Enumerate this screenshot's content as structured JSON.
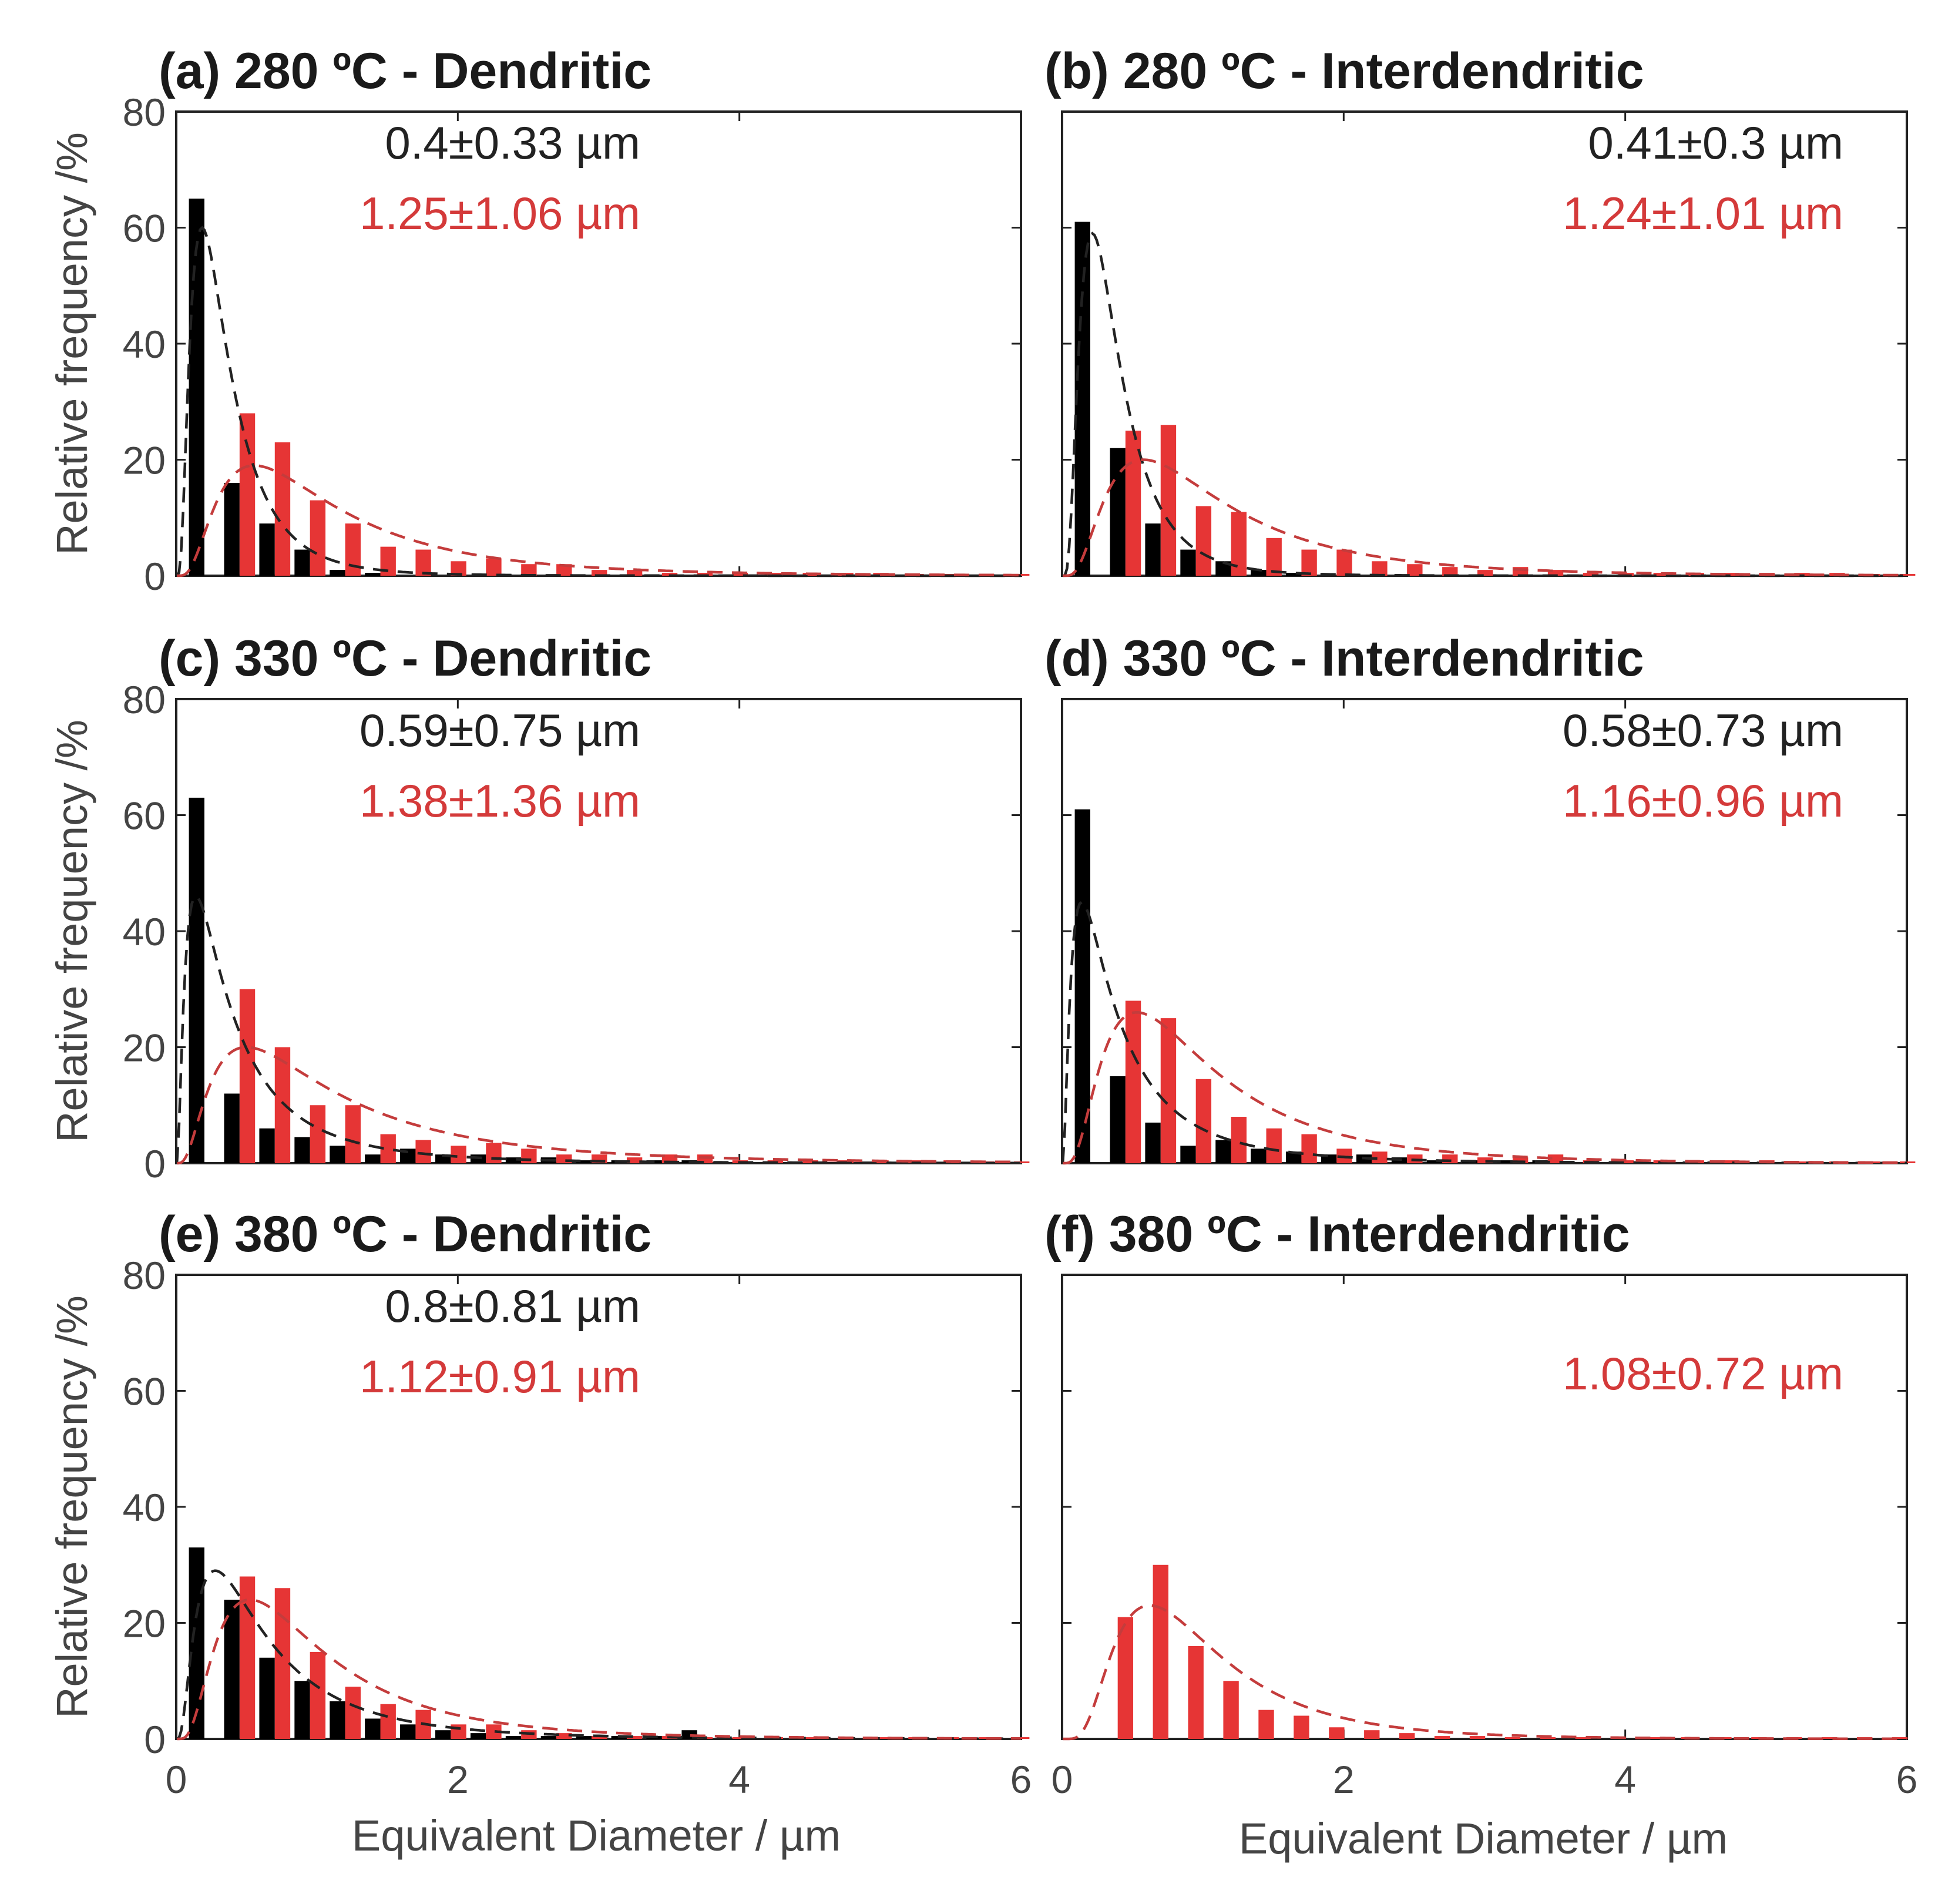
{
  "colors": {
    "series1": "#000000",
    "series2": "#e63535",
    "fit1": "#222222",
    "fit2": "#c43c3c"
  },
  "axes": {
    "xlabel": "Equivalent Diameter / µm",
    "ylabel": "Relative frequency /%",
    "xlim": [
      0,
      6
    ],
    "ylim": [
      0,
      80
    ],
    "xticks": [
      "0",
      "2",
      "4",
      "6"
    ],
    "yticks": [
      "0",
      "20",
      "40",
      "60",
      "80"
    ]
  },
  "chart_data": [
    {
      "panel": "a",
      "type": "bar",
      "title": "(a) 280 ºC - Dendritic",
      "bin_centers": [
        0.2,
        0.45,
        0.7,
        0.95,
        1.2,
        1.45,
        1.7,
        1.95,
        2.2,
        2.45,
        2.7,
        2.95,
        3.2,
        3.45,
        3.7,
        3.95,
        4.2,
        4.45,
        4.7,
        4.95,
        5.2,
        5.45,
        5.7,
        5.95
      ],
      "series": [
        {
          "name": "black",
          "stat": "0.4±0.33 µm",
          "mean": 0.4,
          "std": 0.33,
          "fit_peak": 60,
          "values": [
            65,
            16,
            9,
            4.5,
            1,
            0.5,
            0,
            0,
            0,
            0,
            0,
            0,
            0,
            0,
            0,
            0,
            0,
            0,
            0,
            0,
            0,
            0,
            0,
            0
          ]
        },
        {
          "name": "red",
          "stat": "1.25±1.06 µm",
          "mean": 1.25,
          "std": 1.06,
          "fit_peak": 19,
          "values": [
            0,
            28,
            23,
            13,
            9,
            5,
            4.5,
            2.5,
            3,
            2,
            2,
            1,
            1,
            0.5,
            0.5,
            0.5,
            0.5,
            0.5,
            0.5,
            0.5,
            0.3,
            0.3,
            0.3,
            0.3
          ]
        }
      ]
    },
    {
      "panel": "b",
      "type": "bar",
      "title": "(b) 280 ºC - Interdendritic",
      "bin_centers": [
        0.2,
        0.45,
        0.7,
        0.95,
        1.2,
        1.45,
        1.7,
        1.95,
        2.2,
        2.45,
        2.7,
        2.95,
        3.2,
        3.45,
        3.7,
        3.95,
        4.2,
        4.45,
        4.7,
        4.95,
        5.2,
        5.45,
        5.7,
        5.95
      ],
      "series": [
        {
          "name": "black",
          "stat": "0.41±0.3 µm",
          "mean": 0.41,
          "std": 0.3,
          "fit_peak": 59,
          "values": [
            61,
            22,
            9,
            4.5,
            2.5,
            1,
            0.5,
            0,
            0,
            0,
            0,
            0,
            0,
            0,
            0,
            0,
            0,
            0,
            0,
            0,
            0,
            0,
            0,
            0
          ]
        },
        {
          "name": "red",
          "stat": "1.24±1.01 µm",
          "mean": 1.24,
          "std": 1.01,
          "fit_peak": 20,
          "values": [
            0,
            25,
            26,
            12,
            11,
            6.5,
            4.5,
            4.5,
            2.5,
            2,
            1.5,
            1,
            1.5,
            1,
            0.5,
            0.5,
            0.5,
            0.5,
            0.5,
            0.5,
            0.5,
            0.5,
            0.3,
            0.3
          ]
        }
      ]
    },
    {
      "panel": "c",
      "type": "bar",
      "title": "(c) 330 ºC - Dendritic",
      "bin_centers": [
        0.2,
        0.45,
        0.7,
        0.95,
        1.2,
        1.45,
        1.7,
        1.95,
        2.2,
        2.45,
        2.7,
        2.95,
        3.2,
        3.45,
        3.7,
        3.95,
        4.2,
        4.45,
        4.7,
        4.95,
        5.2,
        5.45,
        5.7,
        5.95
      ],
      "series": [
        {
          "name": "black",
          "stat": "0.59±0.75 µm",
          "mean": 0.59,
          "std": 0.75,
          "fit_peak": 46,
          "values": [
            63,
            12,
            6,
            4.5,
            3,
            1.5,
            2.5,
            1.5,
            1.5,
            1,
            1,
            0.5,
            0.5,
            0.5,
            0.5,
            0,
            0,
            0,
            0,
            0,
            0,
            0,
            0,
            0
          ]
        },
        {
          "name": "red",
          "stat": "1.38±1.36 µm",
          "mean": 1.38,
          "std": 1.36,
          "fit_peak": 20,
          "values": [
            0,
            30,
            20,
            10,
            10,
            5,
            4,
            3,
            3.5,
            2.5,
            1.5,
            1.5,
            1,
            1.5,
            1.5,
            0.5,
            0.5,
            0.5,
            0.5,
            0.5,
            0.5,
            0.5,
            0.3,
            0.3
          ]
        }
      ]
    },
    {
      "panel": "d",
      "type": "bar",
      "title": "(d) 330 ºC - Interdendritic",
      "bin_centers": [
        0.2,
        0.45,
        0.7,
        0.95,
        1.2,
        1.45,
        1.7,
        1.95,
        2.2,
        2.45,
        2.7,
        2.95,
        3.2,
        3.45,
        3.7,
        3.95,
        4.2,
        4.45,
        4.7,
        4.95,
        5.2,
        5.45,
        5.7,
        5.95
      ],
      "series": [
        {
          "name": "black",
          "stat": "0.58±0.73 µm",
          "mean": 0.58,
          "std": 0.73,
          "fit_peak": 45,
          "values": [
            61,
            15,
            7,
            3,
            4,
            2.5,
            2,
            1.5,
            1.5,
            1,
            0.5,
            0.5,
            0.5,
            0.5,
            0,
            0,
            0,
            0,
            0,
            0,
            0,
            0,
            0,
            0
          ]
        },
        {
          "name": "red",
          "stat": "1.16±0.96 µm",
          "mean": 1.16,
          "std": 0.96,
          "fit_peak": 26,
          "values": [
            0,
            28,
            25,
            14.5,
            8,
            6,
            5,
            2.5,
            2,
            1.5,
            1.5,
            1,
            1,
            1.5,
            0.5,
            0.5,
            0.5,
            0.5,
            0.5,
            0.5,
            0.3,
            0.3,
            0.3,
            0.3
          ]
        }
      ]
    },
    {
      "panel": "e",
      "type": "bar",
      "title": "(e) 380 ºC - Dendritic",
      "bin_centers": [
        0.2,
        0.45,
        0.7,
        0.95,
        1.2,
        1.45,
        1.7,
        1.95,
        2.2,
        2.45,
        2.7,
        2.95,
        3.2,
        3.45,
        3.7,
        3.95,
        4.2,
        4.45,
        4.7,
        4.95,
        5.2,
        5.45,
        5.7,
        5.95
      ],
      "series": [
        {
          "name": "black",
          "stat": "0.8±0.81 µm",
          "mean": 0.8,
          "std": 0.81,
          "fit_peak": 29,
          "values": [
            33,
            24,
            14,
            10,
            6.5,
            3.5,
            2.5,
            1.5,
            1,
            0.5,
            0.5,
            0.5,
            0.5,
            0.5,
            1.5,
            0,
            0,
            0,
            0,
            0,
            0,
            0,
            0,
            0
          ]
        },
        {
          "name": "red",
          "stat": "1.12±0.91 µm",
          "mean": 1.12,
          "std": 0.91,
          "fit_peak": 24,
          "values": [
            0,
            28,
            26,
            15,
            9,
            6,
            5,
            2.5,
            2.5,
            1.5,
            1,
            0.5,
            0.5,
            0.5,
            0.3,
            0.3,
            0.3,
            0.3,
            0.3,
            0.3,
            0.3,
            0.3,
            0.3,
            0.3
          ]
        }
      ]
    },
    {
      "panel": "f",
      "type": "bar",
      "title": "(f) 380 ºC - Interdendritic",
      "bin_centers": [
        0.2,
        0.45,
        0.7,
        0.95,
        1.2,
        1.45,
        1.7,
        1.95,
        2.2,
        2.45,
        2.7,
        2.95,
        3.2,
        3.45,
        3.7,
        3.95,
        4.2,
        4.45,
        4.7,
        4.95,
        5.2,
        5.45,
        5.7,
        5.95
      ],
      "series": [
        {
          "name": "red",
          "stat": "1.08±0.72 µm",
          "mean": 1.08,
          "std": 0.72,
          "fit_peak": 23,
          "values": [
            0,
            21,
            30,
            16,
            10,
            5,
            4,
            2,
            1.5,
            1,
            0.5,
            0.5,
            0.3,
            0.3,
            0.3,
            0.3,
            0.3,
            0.3,
            0.3,
            0.3,
            0.3,
            0.3,
            0.3,
            0.3
          ]
        }
      ]
    }
  ]
}
